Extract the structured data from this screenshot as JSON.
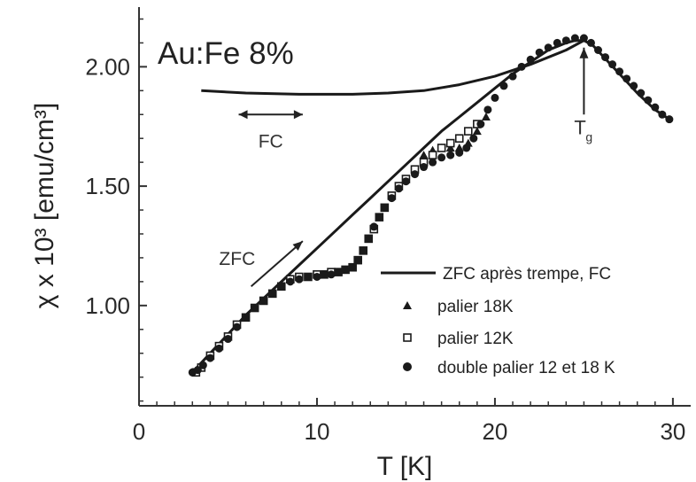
{
  "chart_data": {
    "type": "line",
    "title": "Au:Fe 8%",
    "xlabel": "T [K]",
    "ylabel": "χ x 10³ [emu/cm³]",
    "xlim": [
      0,
      31
    ],
    "ylim": [
      0.58,
      2.25
    ],
    "xticks": [
      0,
      10,
      20,
      30
    ],
    "xtick_labels": [
      "0",
      "10",
      "20",
      "30"
    ],
    "yticks": [
      1.0,
      1.5,
      2.0
    ],
    "ytick_labels": [
      "1.00",
      "1.50",
      "2.00"
    ],
    "grid": false,
    "legend_position": "bottom-right",
    "annotations": {
      "fc": "FC",
      "zfc": "ZFC",
      "tg": "T",
      "tg_sub": "g"
    },
    "series": [
      {
        "name": "ZFC après trempe, FC",
        "marker": "line",
        "segments": [
          {
            "x": [
              3.0,
              4,
              5,
              6,
              7,
              8,
              9,
              10,
              11,
              12,
              13,
              14,
              15,
              16,
              17,
              18,
              19,
              20,
              21,
              22,
              23,
              24,
              24.5,
              25,
              25.5,
              26,
              27,
              28,
              29,
              29.8
            ],
            "y": [
              0.72,
              0.8,
              0.88,
              0.96,
              1.03,
              1.1,
              1.17,
              1.24,
              1.31,
              1.38,
              1.45,
              1.52,
              1.59,
              1.66,
              1.73,
              1.79,
              1.85,
              1.91,
              1.97,
              2.02,
              2.07,
              2.1,
              2.11,
              2.11,
              2.09,
              2.05,
              1.97,
              1.89,
              1.82,
              1.78
            ]
          },
          {
            "x": [
              3.5,
              6,
              9,
              12,
              14,
              16,
              18,
              20,
              22,
              24,
              25
            ],
            "y": [
              1.9,
              1.89,
              1.885,
              1.885,
              1.89,
              1.9,
              1.925,
              1.96,
              2.01,
              2.07,
              2.11
            ]
          }
        ]
      },
      {
        "name": "palier 18K",
        "marker": "triangle",
        "x": [
          16.0,
          16.5,
          17.0,
          17.5,
          18.0,
          18.5,
          19.0,
          19.5
        ],
        "y": [
          1.63,
          1.65,
          1.66,
          1.66,
          1.66,
          1.68,
          1.73,
          1.79
        ]
      },
      {
        "name": "palier 12K",
        "marker": "square",
        "x": [
          3.2,
          3.5,
          4.0,
          4.5,
          5.0,
          5.5,
          6.0,
          6.5,
          7.0,
          7.5,
          8.0,
          8.5,
          9.0,
          9.5,
          10.0,
          10.4,
          10.8,
          11.2,
          11.6,
          12.0,
          12.3,
          12.6,
          12.9,
          13.2,
          13.5,
          13.8,
          14.2,
          14.6,
          15.0,
          15.5,
          16.0,
          16.5,
          17.0,
          17.5,
          18.0,
          18.5,
          19.0
        ],
        "y": [
          0.72,
          0.74,
          0.79,
          0.83,
          0.87,
          0.92,
          0.95,
          0.99,
          1.02,
          1.05,
          1.08,
          1.11,
          1.12,
          1.12,
          1.13,
          1.13,
          1.14,
          1.14,
          1.15,
          1.16,
          1.19,
          1.23,
          1.28,
          1.32,
          1.37,
          1.41,
          1.46,
          1.5,
          1.53,
          1.57,
          1.6,
          1.63,
          1.66,
          1.68,
          1.7,
          1.73,
          1.76
        ]
      },
      {
        "name": "double palier 12 et 18 K",
        "marker": "circle",
        "x": [
          3.0,
          3.3,
          3.6,
          4.0,
          4.5,
          5.0,
          5.5,
          6.0,
          6.5,
          7.0,
          7.5,
          8.0,
          8.5,
          9.0,
          9.5,
          10.0,
          10.4,
          10.8,
          11.2,
          11.6,
          12.0,
          12.3,
          12.6,
          12.9,
          13.2,
          13.5,
          13.8,
          14.2,
          14.6,
          15.0,
          15.5,
          16.0,
          16.5,
          17.0,
          17.5,
          18.0,
          18.4,
          18.8,
          19.2,
          19.6,
          20.0,
          20.5,
          21.0,
          21.5,
          22.0,
          22.5,
          23.0,
          23.5,
          24.0,
          24.5,
          25.0,
          25.4,
          25.8,
          26.2,
          26.6,
          27.0,
          27.4,
          27.8,
          28.2,
          28.6,
          29.0,
          29.4,
          29.8
        ],
        "y": [
          0.72,
          0.73,
          0.75,
          0.78,
          0.82,
          0.86,
          0.91,
          0.95,
          0.99,
          1.02,
          1.05,
          1.08,
          1.1,
          1.11,
          1.12,
          1.12,
          1.13,
          1.13,
          1.14,
          1.15,
          1.16,
          1.19,
          1.23,
          1.28,
          1.33,
          1.37,
          1.41,
          1.45,
          1.49,
          1.52,
          1.55,
          1.58,
          1.6,
          1.62,
          1.63,
          1.64,
          1.66,
          1.7,
          1.76,
          1.82,
          1.87,
          1.92,
          1.96,
          2.0,
          2.03,
          2.06,
          2.08,
          2.1,
          2.11,
          2.12,
          2.12,
          2.1,
          2.07,
          2.04,
          2.01,
          1.98,
          1.95,
          1.92,
          1.89,
          1.86,
          1.83,
          1.8,
          1.78
        ]
      }
    ]
  }
}
